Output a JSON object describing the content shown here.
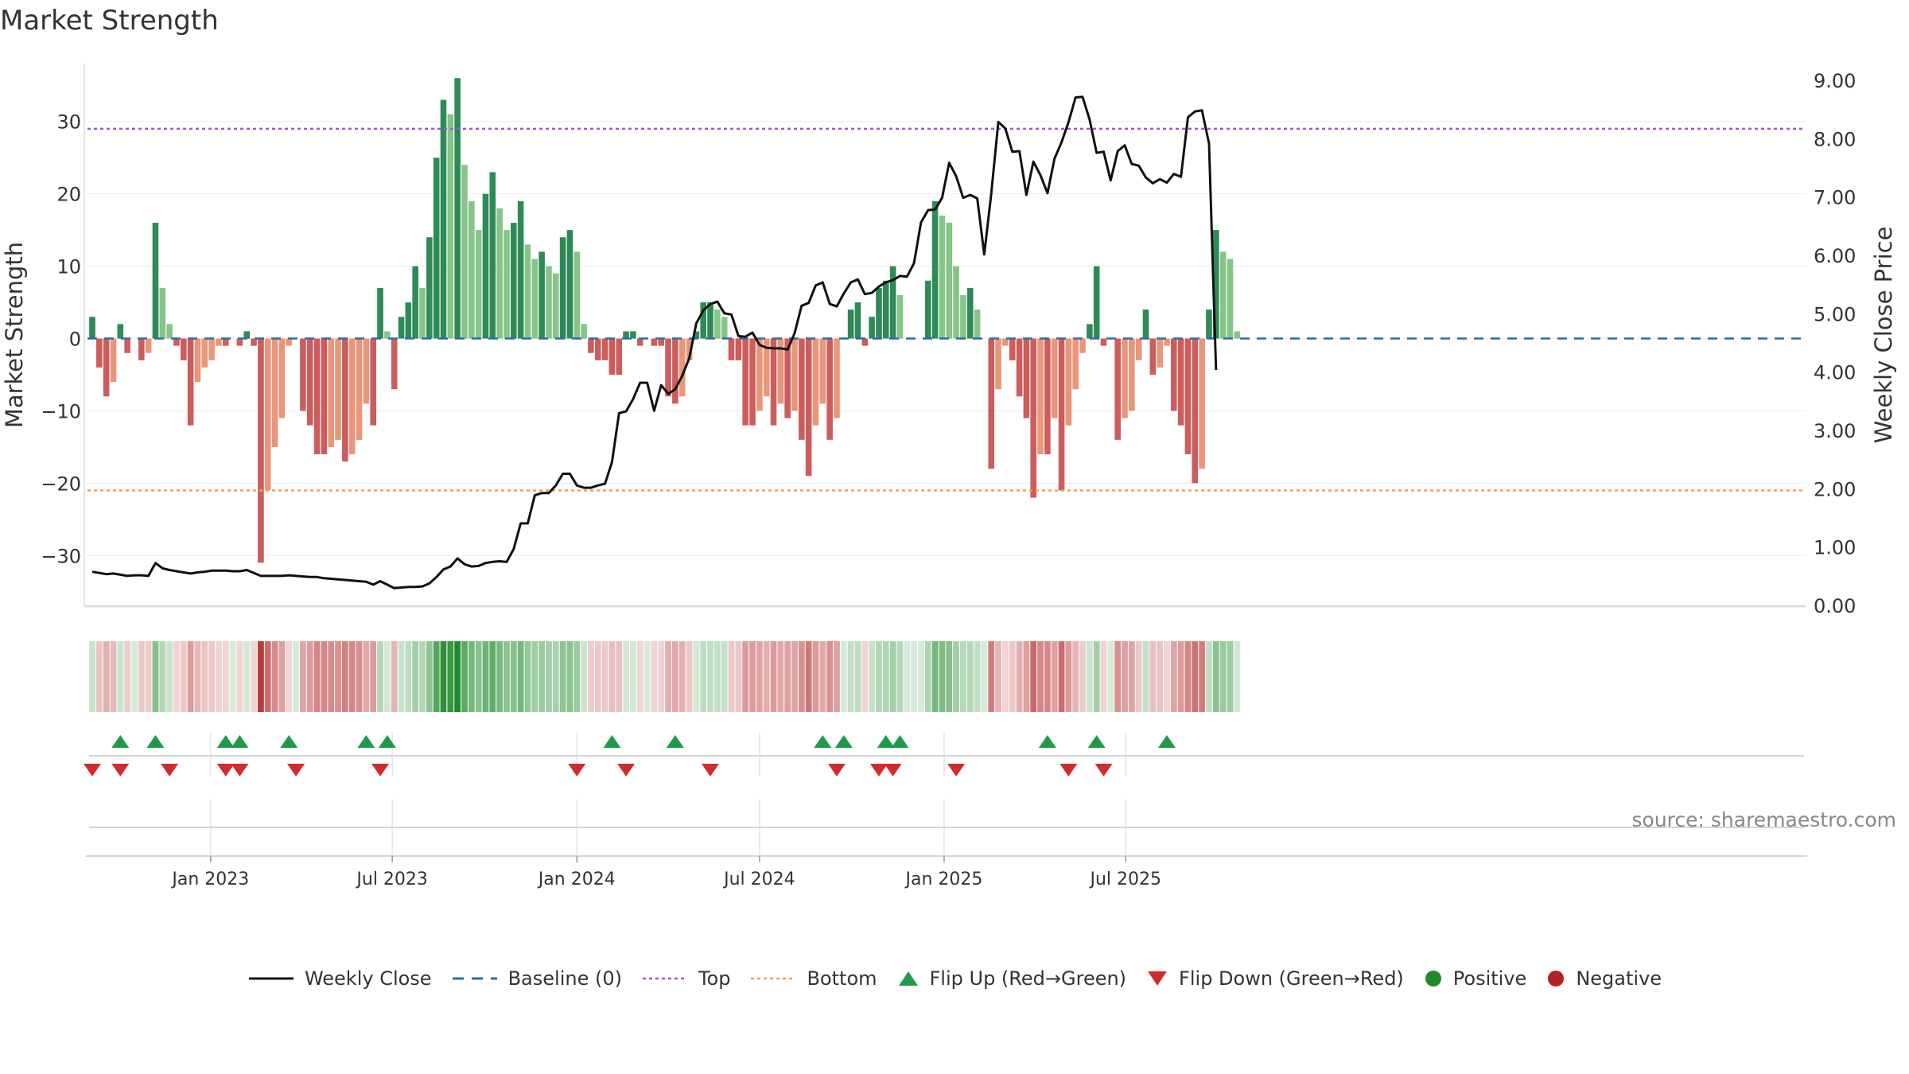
{
  "title": "Market Strength",
  "source_note": "source: sharemaestro.com",
  "chart_data": {
    "type": "bar",
    "start_date": "2022-09-05",
    "x_tick_labels": [
      "Jan 2023",
      "Jul 2023",
      "Jan 2024",
      "Jul 2024",
      "Jan 2025",
      "Jul 2025"
    ],
    "x_tick_dates": [
      "2023-01-01",
      "2023-07-01",
      "2024-01-01",
      "2024-07-01",
      "2025-01-01",
      "2025-07-01"
    ],
    "ylabel_left": "Market Strength",
    "ylabel_right": "Weekly Close Price",
    "ylim_left": [
      -37,
      38
    ],
    "ylim_right": [
      0,
      9.3
    ],
    "left_ticks": [
      30,
      20,
      10,
      0,
      -10,
      -20,
      -30
    ],
    "left_tick_labels": [
      "30",
      "20",
      "10",
      "0",
      "−10",
      "−20",
      "−30"
    ],
    "right_ticks": [
      9,
      8,
      7,
      6,
      5,
      4,
      3,
      2,
      1,
      0
    ],
    "right_tick_labels": [
      "9.00",
      "8.00",
      "7.00",
      "6.00",
      "5.00",
      "4.00",
      "3.00",
      "2.00",
      "1.00",
      "0.00"
    ],
    "top_line": 29,
    "bottom_line": -21,
    "grid": true,
    "strength": [
      3,
      -4,
      -8,
      -6,
      2,
      -2,
      0,
      -3,
      -2,
      16,
      7,
      2,
      -1,
      -3,
      -12,
      -6,
      -4,
      -3,
      -1,
      -1,
      0,
      -1,
      1,
      -1,
      -31,
      -21,
      -15,
      -11,
      -1,
      0,
      -10,
      -12,
      -16,
      -16,
      -15,
      -14,
      -17,
      -16,
      -14,
      -9,
      -12,
      7,
      1,
      -7,
      3,
      5,
      10,
      7,
      14,
      25,
      33,
      31,
      36,
      24,
      19,
      15,
      20,
      23,
      18,
      15,
      16,
      19,
      13,
      11,
      12,
      10,
      9,
      14,
      15,
      12,
      2,
      -2,
      -3,
      -3,
      -5,
      -5,
      1,
      1,
      -1,
      0,
      -1,
      -1,
      -8,
      -9,
      -8,
      -3,
      1,
      5,
      5,
      4,
      3,
      -3,
      -3,
      -12,
      -12,
      -10,
      -8,
      -12,
      -9,
      -11,
      -10,
      -14,
      -19,
      -12,
      -9,
      -14,
      -11,
      0,
      4,
      5,
      -1,
      3,
      7,
      8,
      10,
      6,
      0,
      0,
      0,
      8,
      19,
      17,
      16,
      10,
      6,
      7,
      4,
      0,
      -18,
      -7,
      -1,
      -3,
      -8,
      -11,
      -22,
      -16,
      -16,
      -11,
      -21,
      -12,
      -7,
      -2,
      2,
      10,
      -1,
      0,
      -14,
      -11,
      -10,
      -3,
      4,
      -5,
      -4,
      -1,
      -10,
      -12,
      -16,
      -20,
      -18,
      4,
      15,
      12,
      11,
      1
    ],
    "weekly_close": [
      0.59,
      0.57,
      0.55,
      0.56,
      0.54,
      0.52,
      0.53,
      0.53,
      0.52,
      0.74,
      0.65,
      0.62,
      0.6,
      0.58,
      0.56,
      0.58,
      0.59,
      0.61,
      0.61,
      0.61,
      0.6,
      0.6,
      0.62,
      0.57,
      0.52,
      0.52,
      0.52,
      0.52,
      0.53,
      0.52,
      0.51,
      0.5,
      0.5,
      0.48,
      0.47,
      0.46,
      0.45,
      0.44,
      0.43,
      0.42,
      0.37,
      0.43,
      0.37,
      0.31,
      0.32,
      0.33,
      0.33,
      0.34,
      0.39,
      0.5,
      0.63,
      0.68,
      0.82,
      0.72,
      0.68,
      0.69,
      0.74,
      0.76,
      0.77,
      0.76,
      0.98,
      1.42,
      1.42,
      1.9,
      1.94,
      1.94,
      2.07,
      2.27,
      2.27,
      2.07,
      2.03,
      2.03,
      2.07,
      2.1,
      2.47,
      3.31,
      3.34,
      3.55,
      3.83,
      3.83,
      3.35,
      3.79,
      3.64,
      3.72,
      3.95,
      4.25,
      4.85,
      5.07,
      5.18,
      5.22,
      5.02,
      5.0,
      4.63,
      4.62,
      4.69,
      4.48,
      4.43,
      4.42,
      4.42,
      4.4,
      4.68,
      5.15,
      5.2,
      5.5,
      5.55,
      5.18,
      5.14,
      5.36,
      5.55,
      5.6,
      5.35,
      5.37,
      5.48,
      5.55,
      5.59,
      5.66,
      5.65,
      5.88,
      6.58,
      6.79,
      6.8,
      7.0,
      7.6,
      7.37,
      7.0,
      7.05,
      6.99,
      6.03,
      7.07,
      8.3,
      8.19,
      7.79,
      7.8,
      7.05,
      7.62,
      7.39,
      7.08,
      7.67,
      7.95,
      8.3,
      8.72,
      8.73,
      8.34,
      7.77,
      7.79,
      7.3,
      7.8,
      7.9,
      7.58,
      7.55,
      7.35,
      7.25,
      7.32,
      7.26,
      7.41,
      7.36,
      8.38,
      8.48,
      8.5,
      7.93,
      4.05
    ],
    "flip_up_weeks": [
      4,
      9,
      19,
      21,
      28,
      39,
      42,
      74,
      83,
      104,
      107,
      113,
      115,
      136,
      143,
      153
    ],
    "flip_down_weeks": [
      0,
      4,
      11,
      19,
      21,
      29,
      41,
      69,
      76,
      88,
      106,
      112,
      114,
      123,
      139,
      144
    ],
    "colors": {
      "positive_strong": "#2e8b57",
      "positive_weak": "#86c488",
      "negative_strong": "#cd5c5c",
      "negative_weak": "#e9967a",
      "line": "#111111",
      "baseline": "#2c6e9e",
      "top": "#9b59d0",
      "bottom": "#f0a060",
      "flip_up": "#1e9b4a",
      "flip_down": "#d22b2b",
      "positive_dot": "#1f8a2a",
      "negative_dot": "#b22222"
    }
  },
  "legend": [
    {
      "label": "Weekly Close",
      "icon": "solid-line"
    },
    {
      "label": "Baseline (0)",
      "icon": "dashed-line"
    },
    {
      "label": "Top",
      "icon": "dotted-line-purple"
    },
    {
      "label": "Bottom",
      "icon": "dotted-line-orange"
    },
    {
      "label": "Flip Up (Red→Green)",
      "icon": "triangle-up"
    },
    {
      "label": "Flip Down (Green→Red)",
      "icon": "triangle-down"
    },
    {
      "label": "Positive",
      "icon": "dot-green"
    },
    {
      "label": "Negative",
      "icon": "dot-red"
    }
  ]
}
